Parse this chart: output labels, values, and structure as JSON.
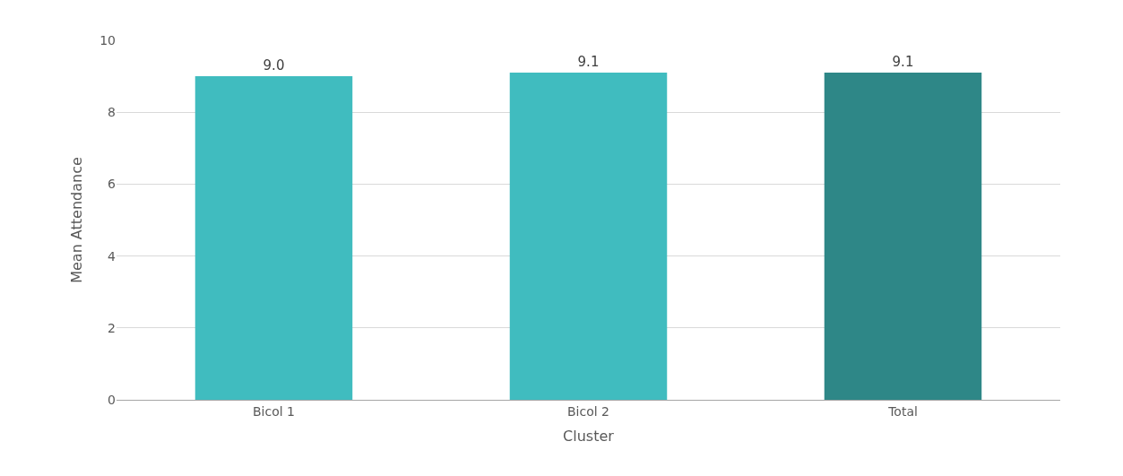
{
  "chart_data": {
    "type": "bar",
    "xlabel": "Cluster",
    "ylabel": "Mean Attendance",
    "categories": [
      "Bicol 1",
      "Bicol 2",
      "Total"
    ],
    "values": [
      9.0,
      9.1,
      9.1
    ],
    "colors": [
      "#40bcbf",
      "#40bcbf",
      "#2e8787"
    ],
    "value_labels": [
      "9.0",
      "9.1",
      "9.1"
    ],
    "ylim": [
      0,
      10
    ],
    "yticks": [
      0,
      2,
      4,
      6,
      8,
      10
    ],
    "grid": "y"
  }
}
